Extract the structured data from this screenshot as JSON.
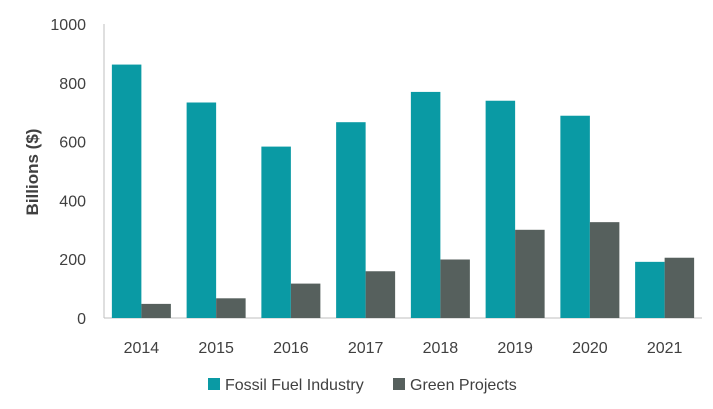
{
  "chart_data": {
    "type": "bar",
    "title": "",
    "xlabel": "",
    "ylabel": "Billions ($)",
    "ylim": [
      0,
      1000
    ],
    "yticks": [
      0,
      200,
      400,
      600,
      800,
      1000
    ],
    "grid": false,
    "legend_position": "bottom",
    "categories": [
      "2014",
      "2015",
      "2016",
      "2017",
      "2018",
      "2019",
      "2020",
      "2021"
    ],
    "series": [
      {
        "name": "Fossil Fuel Industry",
        "color": "#0a9aa4",
        "values": [
          862,
          733,
          583,
          666,
          769,
          739,
          688,
          191
        ]
      },
      {
        "name": "Green Projects",
        "color": "#56605d",
        "values": [
          48,
          67,
          117,
          159,
          199,
          300,
          326,
          205
        ]
      }
    ]
  }
}
